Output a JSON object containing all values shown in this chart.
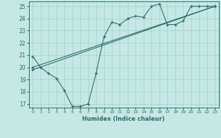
{
  "xlabel": "Humidex (Indice chaleur)",
  "xlim": [
    -0.5,
    23.5
  ],
  "ylim": [
    16.7,
    25.4
  ],
  "yticks": [
    17,
    18,
    19,
    20,
    21,
    22,
    23,
    24,
    25
  ],
  "xticks": [
    0,
    1,
    2,
    3,
    4,
    5,
    6,
    7,
    8,
    9,
    10,
    11,
    12,
    13,
    14,
    15,
    16,
    17,
    18,
    19,
    20,
    21,
    22,
    23
  ],
  "background_color": "#c5e8e5",
  "grid_color": "#9fcfcc",
  "line_color": "#2a6b68",
  "line1_x": [
    0,
    1,
    2,
    3,
    4,
    5,
    6,
    7,
    8,
    9,
    10,
    11,
    12,
    13,
    14,
    15,
    16,
    17,
    18,
    19,
    20,
    21,
    22,
    23
  ],
  "line1_y": [
    20.9,
    20.0,
    19.5,
    19.1,
    18.1,
    16.8,
    16.8,
    17.0,
    19.5,
    22.5,
    23.7,
    23.5,
    24.0,
    24.2,
    24.1,
    25.0,
    25.2,
    23.5,
    23.5,
    23.8,
    25.0,
    25.0,
    25.0,
    25.0
  ],
  "line2_x": [
    0,
    23
  ],
  "line2_y": [
    20.0,
    25.0
  ],
  "line3_x": [
    0,
    23
  ],
  "line3_y": [
    19.8,
    25.0
  ]
}
